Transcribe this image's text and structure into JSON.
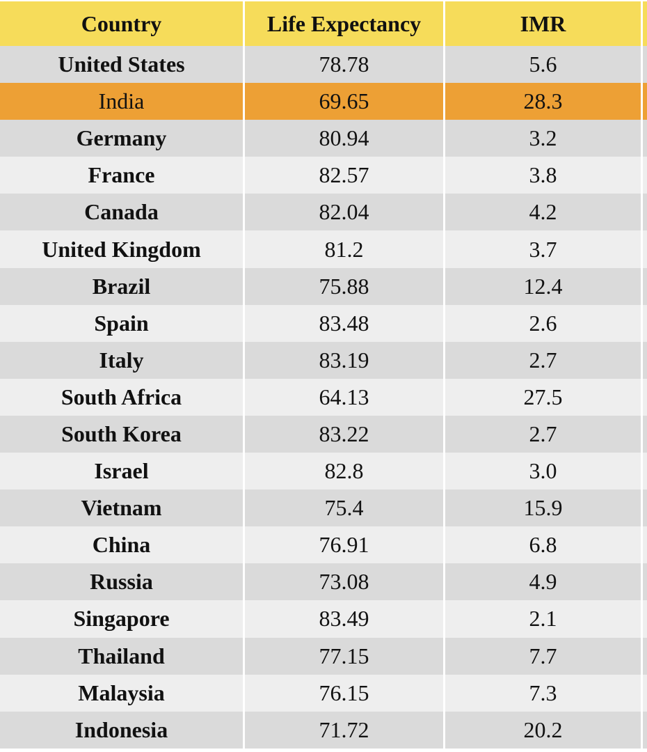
{
  "chart_data": {
    "type": "table",
    "columns": [
      "Country",
      "Life Expectancy",
      "IMR"
    ],
    "rows": [
      {
        "country": "United States",
        "life": "78.78",
        "imr": "5.6"
      },
      {
        "country": "India",
        "life": "69.65",
        "imr": "28.3",
        "highlight": true
      },
      {
        "country": "Germany",
        "life": "80.94",
        "imr": "3.2"
      },
      {
        "country": "France",
        "life": "82.57",
        "imr": "3.8"
      },
      {
        "country": "Canada",
        "life": "82.04",
        "imr": "4.2"
      },
      {
        "country": "United Kingdom",
        "life": "81.2",
        "imr": "3.7"
      },
      {
        "country": "Brazil",
        "life": "75.88",
        "imr": "12.4"
      },
      {
        "country": "Spain",
        "life": "83.48",
        "imr": "2.6"
      },
      {
        "country": "Italy",
        "life": "83.19",
        "imr": "2.7"
      },
      {
        "country": "South Africa",
        "life": "64.13",
        "imr": "27.5"
      },
      {
        "country": "South Korea",
        "life": "83.22",
        "imr": "2.7"
      },
      {
        "country": "Israel",
        "life": "82.8",
        "imr": "3.0"
      },
      {
        "country": "Vietnam",
        "life": "75.4",
        "imr": "15.9"
      },
      {
        "country": "China",
        "life": "76.91",
        "imr": "6.8"
      },
      {
        "country": "Russia",
        "life": "73.08",
        "imr": "4.9"
      },
      {
        "country": "Singapore",
        "life": "83.49",
        "imr": "2.1"
      },
      {
        "country": "Thailand",
        "life": "77.15",
        "imr": "7.7"
      },
      {
        "country": "Malaysia",
        "life": "76.15",
        "imr": "7.3"
      },
      {
        "country": "Indonesia",
        "life": "71.72",
        "imr": "20.2"
      }
    ]
  },
  "colors": {
    "header": "#f6dc5a",
    "row_dark": "#dadada",
    "row_light": "#eeeeee",
    "highlight": "#eda035"
  }
}
